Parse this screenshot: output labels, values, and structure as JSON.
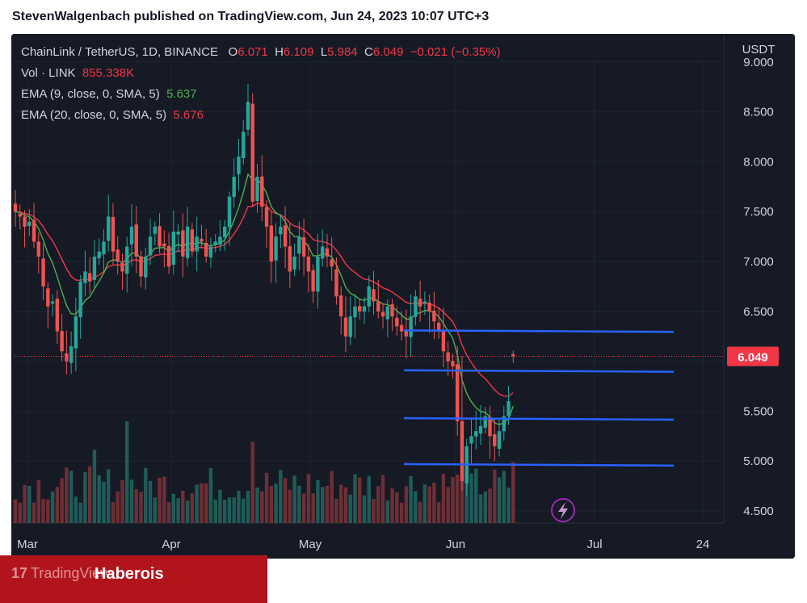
{
  "header": {
    "text": "StevenWalgenbach published on TradingView.com, Jun 24, 2023 10:07 UTC+3"
  },
  "legend": {
    "symbol": "ChainLink / TetherUS, 1D, BINANCE",
    "o_label": "O",
    "o_value": "6.071",
    "h_label": "H",
    "h_value": "6.109",
    "l_label": "L",
    "l_value": "5.984",
    "c_label": "C",
    "c_value": "6.049",
    "change": "−0.021 (−0.35%)",
    "vol_label": "Vol · LINK",
    "vol_value": "855.338K",
    "ema9_label": "EMA (9, close, 0, SMA, 5)",
    "ema9_value": "5.637",
    "ema20_label": "EMA (20, close, 0, SMA, 5)",
    "ema20_value": "5.676"
  },
  "price_scale": {
    "currency": "USDT",
    "last_price": "6.049"
  },
  "footer": {
    "brand": "TradingView",
    "author": "Haberois"
  },
  "icons": {
    "lightning": "lightning-icon",
    "logo": "tradingview-logo-icon"
  },
  "colors": {
    "up": "#26a69a",
    "down": "#ef5350",
    "ema9": "#4caf50",
    "ema20": "#f23645",
    "levels": "#2962ff"
  },
  "chart_data": {
    "type": "candlestick",
    "title": "ChainLink / TetherUS, 1D, BINANCE",
    "ylabel": "USDT",
    "ylim": [
      4.3,
      9.0
    ],
    "y_ticks": [
      "4.500",
      "5.000",
      "5.500",
      "6.000",
      "6.500",
      "7.000",
      "7.500",
      "8.000",
      "8.500",
      "9.000"
    ],
    "x_ticks": [
      "Mar",
      "Apr",
      "May",
      "Jun",
      "Jul",
      "24"
    ],
    "dates": [
      "2023-02-24",
      "2023-06-24"
    ],
    "close_path": [
      7.5,
      7.45,
      7.35,
      7.4,
      7.2,
      7.05,
      6.75,
      6.55,
      6.6,
      6.3,
      6.1,
      6.0,
      6.15,
      6.45,
      6.8,
      6.9,
      6.8,
      7.05,
      7.1,
      7.2,
      7.45,
      7.1,
      7.0,
      6.9,
      7.15,
      7.35,
      7.05,
      6.85,
      7.05,
      7.25,
      7.35,
      7.15,
      7.15,
      6.95,
      7.3,
      7.3,
      7.05,
      7.35,
      7.1,
      7.25,
      7.2,
      7.05,
      7.15,
      7.2,
      7.25,
      7.35,
      7.65,
      7.85,
      8.05,
      8.3,
      8.6,
      7.6,
      7.85,
      7.55,
      7.35,
      7.0,
      7.25,
      7.35,
      7.15,
      6.9,
      7.05,
      7.25,
      7.05,
      6.9,
      6.7,
      7.05,
      7.15,
      7.05,
      6.95,
      6.65,
      6.45,
      6.25,
      6.45,
      6.55,
      6.5,
      6.55,
      6.75,
      6.6,
      6.5,
      6.45,
      6.55,
      6.45,
      6.35,
      6.3,
      6.25,
      6.45,
      6.65,
      6.55,
      6.6,
      6.5,
      6.4,
      6.3,
      6.1,
      6.0,
      5.95,
      5.4,
      4.8,
      5.15,
      5.25,
      5.3,
      5.35,
      5.45,
      5.25,
      5.15,
      5.3,
      5.45,
      5.6,
      6.049
    ],
    "levels": [
      6.31,
      5.91,
      5.43,
      4.97
    ],
    "last": {
      "open": 6.071,
      "high": 6.109,
      "low": 5.984,
      "close": 6.049,
      "change": -0.021,
      "change_pct": -0.35
    },
    "volume_last": 855338,
    "ema9_last": 5.637,
    "ema20_last": 5.676
  }
}
